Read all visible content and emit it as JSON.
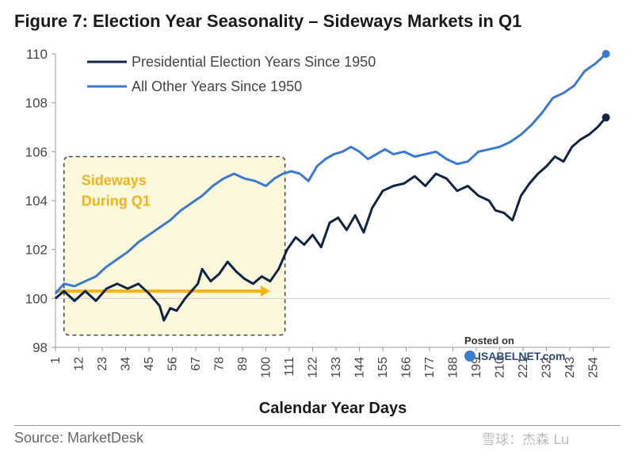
{
  "title": "Figure 7: Election Year Seasonality – Sideways Markets in Q1",
  "source": "Source: MarketDesk",
  "watermark": {
    "posted_on": "Posted on",
    "site": "ISABELNET.com"
  },
  "corner_mark": "雪球：杰森 Lu",
  "chart_data": {
    "type": "line",
    "xlabel": "Calendar Year Days",
    "ylabel": "",
    "ylim": [
      98,
      110
    ],
    "xlim": [
      1,
      262
    ],
    "yticks": [
      98,
      100,
      102,
      104,
      106,
      108,
      110
    ],
    "xticks": [
      1,
      12,
      23,
      34,
      45,
      56,
      67,
      78,
      89,
      100,
      111,
      122,
      133,
      144,
      155,
      166,
      177,
      188,
      199,
      210,
      221,
      232,
      243,
      254
    ],
    "grid": "horizontal baseline at 100",
    "legend_position": "top-left",
    "annotation": {
      "text_line1": "Sideways",
      "text_line2": "During Q1",
      "box_x": [
        5,
        109
      ],
      "box_y": [
        98.5,
        105.8
      ],
      "arrow_x": [
        1,
        102
      ],
      "arrow_y": 100.3
    },
    "series": [
      {
        "name": "Presidential Election Years Since 1950",
        "color": "#0f2344",
        "x": [
          1,
          5,
          10,
          15,
          20,
          25,
          30,
          35,
          40,
          45,
          50,
          52,
          55,
          58,
          62,
          66,
          68,
          70,
          74,
          78,
          82,
          86,
          90,
          94,
          98,
          102,
          106,
          110,
          114,
          118,
          122,
          126,
          130,
          134,
          138,
          142,
          146,
          150,
          155,
          160,
          165,
          170,
          175,
          180,
          185,
          190,
          195,
          200,
          205,
          208,
          212,
          216,
          220,
          224,
          228,
          232,
          236,
          240,
          244,
          248,
          252,
          256,
          260
        ],
        "values": [
          100.0,
          100.3,
          99.9,
          100.3,
          99.9,
          100.4,
          100.6,
          100.4,
          100.6,
          100.2,
          99.7,
          99.1,
          99.6,
          99.5,
          100.0,
          100.4,
          100.6,
          101.2,
          100.7,
          101.0,
          101.5,
          101.1,
          100.8,
          100.6,
          100.9,
          100.7,
          101.2,
          102.0,
          102.5,
          102.2,
          102.6,
          102.1,
          103.1,
          103.3,
          102.8,
          103.4,
          102.7,
          103.7,
          104.4,
          104.6,
          104.7,
          105.0,
          104.6,
          105.1,
          104.9,
          104.4,
          104.6,
          104.2,
          104.0,
          103.6,
          103.5,
          103.2,
          104.2,
          104.7,
          105.1,
          105.4,
          105.8,
          105.6,
          106.2,
          106.5,
          106.7,
          107.0,
          107.4
        ]
      },
      {
        "name": "All Other Years Since 1950",
        "color": "#3b78d0",
        "x": [
          1,
          5,
          10,
          15,
          20,
          25,
          30,
          35,
          40,
          45,
          50,
          55,
          60,
          65,
          70,
          75,
          80,
          85,
          90,
          95,
          100,
          104,
          108,
          112,
          116,
          120,
          124,
          128,
          132,
          136,
          140,
          144,
          148,
          152,
          156,
          160,
          165,
          170,
          175,
          180,
          185,
          190,
          195,
          200,
          205,
          210,
          215,
          220,
          225,
          230,
          235,
          240,
          245,
          250,
          255,
          260
        ],
        "values": [
          100.2,
          100.6,
          100.5,
          100.7,
          100.9,
          101.3,
          101.6,
          101.9,
          102.3,
          102.6,
          102.9,
          103.2,
          103.6,
          103.9,
          104.2,
          104.6,
          104.9,
          105.1,
          104.9,
          104.8,
          104.6,
          104.9,
          105.1,
          105.2,
          105.1,
          104.8,
          105.4,
          105.7,
          105.9,
          106.0,
          106.2,
          106.0,
          105.7,
          105.9,
          106.1,
          105.9,
          106.0,
          105.8,
          105.9,
          106.0,
          105.7,
          105.5,
          105.6,
          106.0,
          106.1,
          106.2,
          106.4,
          106.7,
          107.1,
          107.6,
          108.2,
          108.4,
          108.7,
          109.3,
          109.6,
          110.0
        ]
      }
    ]
  }
}
